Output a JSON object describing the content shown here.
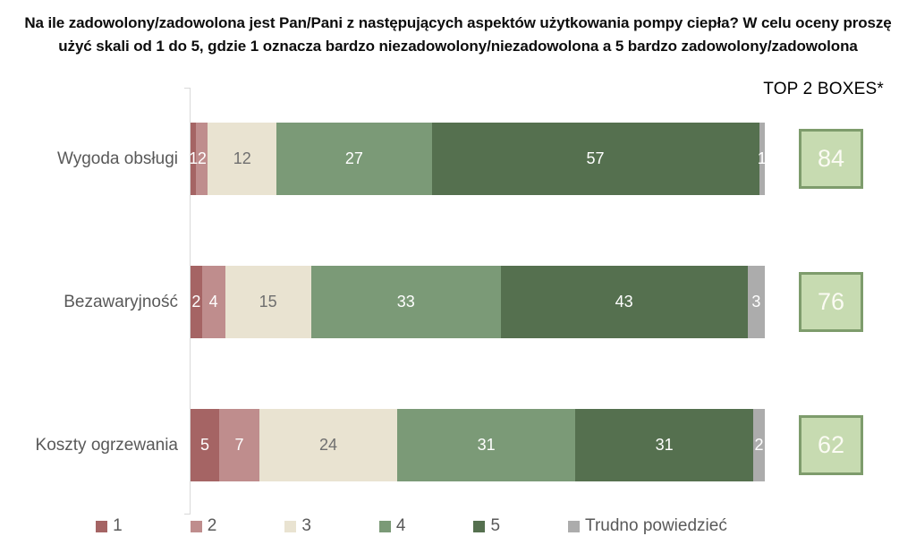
{
  "title": "Na ile zadowolony/zadowolona jest Pan/Pani z następujących aspektów użytkowania pompy ciepła? W celu oceny proszę użyć skali od 1 do 5, gdzie 1 oznacza bardzo niezadowolony/niezadowolona a 5 bardzo zadowolony/zadowolona",
  "top2_header": "TOP 2 BOXES*",
  "chart_data": {
    "type": "bar",
    "orientation": "horizontal",
    "stacked": true,
    "unit": "percent",
    "xlim": [
      0,
      100
    ],
    "legend_position": "bottom",
    "value_labels": true,
    "categories": [
      "Wygoda obsługi",
      "Bezawaryjność",
      "Koszty ogrzewania"
    ],
    "series": [
      {
        "name": "1",
        "color": "#A56464",
        "label_color": "#FFFFFF",
        "values": [
          1,
          2,
          5
        ]
      },
      {
        "name": "2",
        "color": "#BF8D8D",
        "label_color": "#FFFFFF",
        "values": [
          2,
          4,
          7
        ]
      },
      {
        "name": "3",
        "color": "#E9E3D1",
        "label_color": "#6F6F6F",
        "values": [
          12,
          15,
          24
        ]
      },
      {
        "name": "4",
        "color": "#7B9A77",
        "label_color": "#FFFFFF",
        "values": [
          27,
          33,
          31
        ]
      },
      {
        "name": "5",
        "color": "#55704F",
        "label_color": "#FFFFFF",
        "values": [
          57,
          43,
          31
        ]
      },
      {
        "name": "Trudno powiedzieć",
        "color": "#ACACAC",
        "label_color": "#FFFFFF",
        "values": [
          1,
          3,
          2
        ]
      }
    ],
    "top2_boxes": [
      84,
      76,
      62
    ]
  },
  "colors": {
    "top2_box_fill": "#C7DBB1",
    "top2_box_border": "#7E9C6C",
    "top2_box_text": "#FBFBF3",
    "axis_line": "#D9D9D9",
    "category_label": "#595959",
    "legend_text": "#595959",
    "title_text": "#0d0d0d"
  }
}
